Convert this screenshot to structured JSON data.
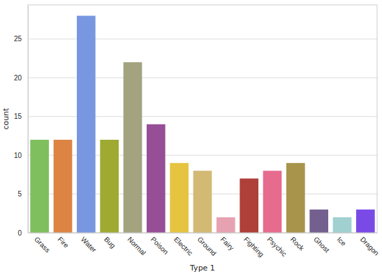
{
  "chart_data": {
    "type": "bar",
    "x_label": "Type 1",
    "y_label": "count",
    "categories": [
      "Grass",
      "Fire",
      "Water",
      "Bug",
      "Normal",
      "Poison",
      "Electric",
      "Ground",
      "Fairy",
      "Fighting",
      "Psychic",
      "Rock",
      "Ghost",
      "Ice",
      "Dragon"
    ],
    "values": [
      12,
      12,
      28,
      12,
      22,
      14,
      9,
      8,
      2,
      7,
      8,
      9,
      3,
      2,
      3
    ],
    "colors": [
      "#7fbf5e",
      "#dd8445",
      "#7897e0",
      "#9eaa31",
      "#a3a37f",
      "#964f96",
      "#e6c440",
      "#d2b974",
      "#e7a2b2",
      "#ae3f39",
      "#e66b8f",
      "#a8944a",
      "#73608f",
      "#a0d0d0",
      "#7a4ae6"
    ],
    "ylim": [
      0,
      29.4
    ],
    "yticks": [
      0,
      5,
      10,
      15,
      20,
      25
    ],
    "grid": true
  }
}
